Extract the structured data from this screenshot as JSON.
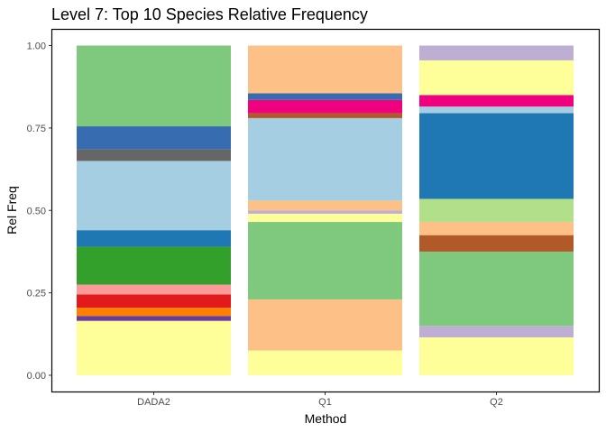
{
  "chart_data": {
    "type": "bar",
    "stacked": true,
    "title": "Level 7: Top 10 Species Relative Frequency",
    "xlabel": "Method",
    "ylabel": "Rel Freq",
    "categories": [
      "DADA2",
      "Q1",
      "Q2"
    ],
    "ylim": [
      0,
      1
    ],
    "yticks": [
      "0.00",
      "0.25",
      "0.50",
      "0.75",
      "1.00"
    ],
    "grid": false,
    "legend": "none",
    "segments": [
      [
        {
          "value": 0.165,
          "color": "#ffff99"
        },
        {
          "value": 0.015,
          "color": "#6a3d9a"
        },
        {
          "value": 0.025,
          "color": "#ff7f00"
        },
        {
          "value": 0.04,
          "color": "#e31a1c"
        },
        {
          "value": 0.03,
          "color": "#fb9a99"
        },
        {
          "value": 0.115,
          "color": "#33a02c"
        },
        {
          "value": 0.05,
          "color": "#1f78b4"
        },
        {
          "value": 0.21,
          "color": "#a6cee3"
        },
        {
          "value": 0.035,
          "color": "#666666"
        },
        {
          "value": 0.07,
          "color": "#386cb0"
        },
        {
          "value": 0.245,
          "color": "#7fc97f"
        }
      ],
      [
        {
          "value": 0.075,
          "color": "#ffff99"
        },
        {
          "value": 0.155,
          "color": "#fdc086"
        },
        {
          "value": 0.235,
          "color": "#7fc97f"
        },
        {
          "value": 0.025,
          "color": "#ffff99"
        },
        {
          "value": 0.01,
          "color": "#beaed4"
        },
        {
          "value": 0.03,
          "color": "#fdc086"
        },
        {
          "value": 0.25,
          "color": "#a6cee3"
        },
        {
          "value": 0.015,
          "color": "#b15928"
        },
        {
          "value": 0.04,
          "color": "#f0027f"
        },
        {
          "value": 0.02,
          "color": "#386cb0"
        },
        {
          "value": 0.145,
          "color": "#fdc086"
        }
      ],
      [
        {
          "value": 0.115,
          "color": "#ffff99"
        },
        {
          "value": 0.035,
          "color": "#beaed4"
        },
        {
          "value": 0.225,
          "color": "#7fc97f"
        },
        {
          "value": 0.05,
          "color": "#b15928"
        },
        {
          "value": 0.04,
          "color": "#fdc086"
        },
        {
          "value": 0.07,
          "color": "#b2df8a"
        },
        {
          "value": 0.26,
          "color": "#1f78b4"
        },
        {
          "value": 0.02,
          "color": "#a6cee3"
        },
        {
          "value": 0.035,
          "color": "#f0027f"
        },
        {
          "value": 0.105,
          "color": "#ffff99"
        },
        {
          "value": 0.045,
          "color": "#beaed4"
        }
      ]
    ]
  }
}
